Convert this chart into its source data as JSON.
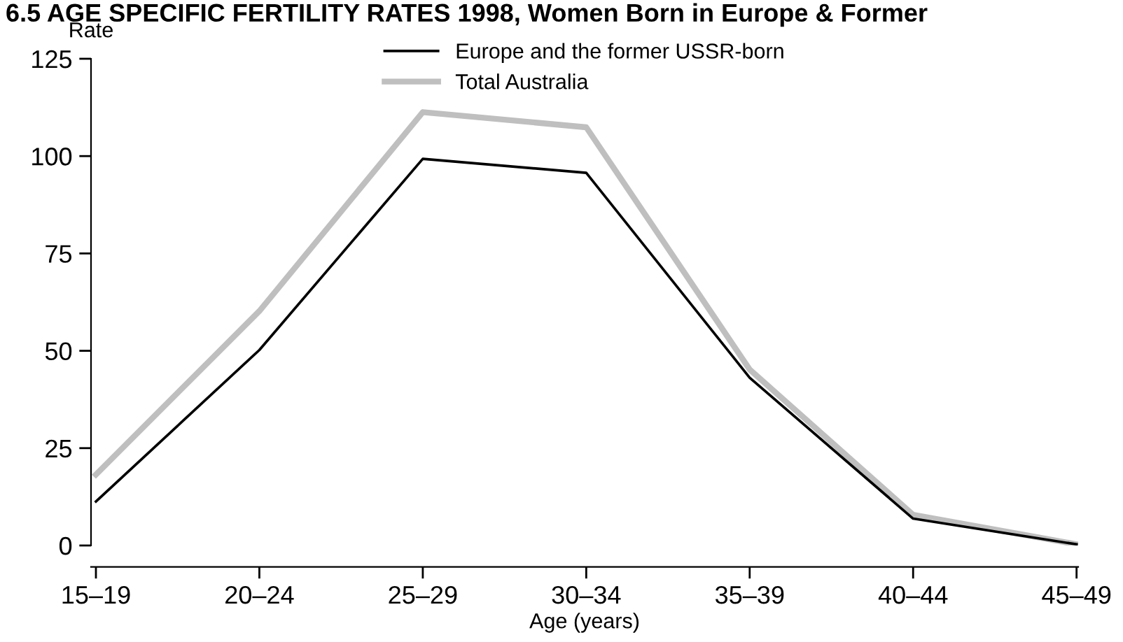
{
  "chart_data": {
    "type": "line",
    "title": "6.5 AGE SPECIFIC FERTILITY RATES 1998, Women Born in Europe & Former",
    "ylabel": "Rate",
    "xlabel": "Age (years)",
    "categories": [
      "15–19",
      "20–24",
      "25–29",
      "30–34",
      "35–39",
      "40–44",
      "45–49"
    ],
    "series": [
      {
        "name": "Europe and the former USSR-born",
        "color": "#000000",
        "values": [
          11.3,
          50.2,
          99.3,
          95.7,
          43.1,
          6.9,
          0.3
        ]
      },
      {
        "name": "Total Australia",
        "color": "#bfbfbf",
        "values": [
          18.2,
          60.2,
          111.3,
          107.4,
          45.2,
          7.9,
          0.3
        ]
      }
    ],
    "ylim": [
      0,
      125
    ],
    "yticks": [
      0,
      25,
      50,
      75,
      100,
      125
    ],
    "grid": false,
    "legend": "top",
    "marker": "none",
    "line_style": "solid"
  }
}
